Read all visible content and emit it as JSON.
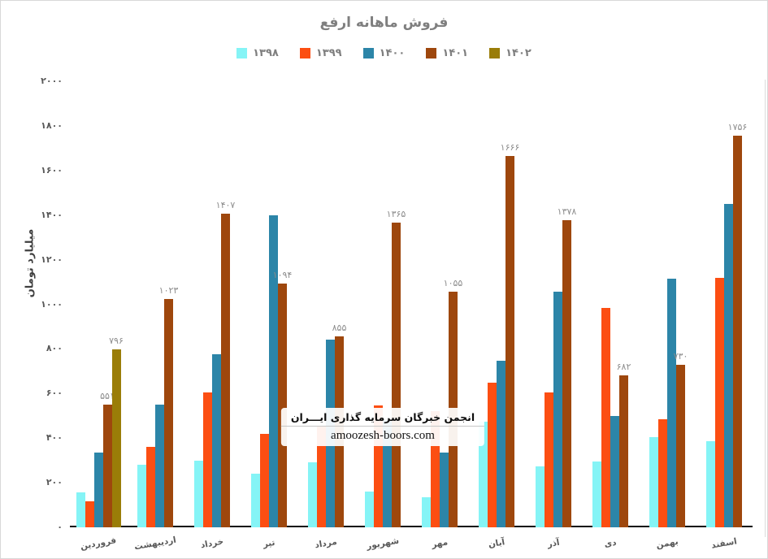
{
  "watermark": {
    "line1": "انجمن خبرگان سرمایه گذاری ایـــران",
    "line2": "amoozesh-boors.com"
  },
  "chart_data": {
    "type": "bar",
    "title": "فروش ماهانه ارفع",
    "ylabel": "میلیارد تومان",
    "xlabel": "",
    "ylim": [
      0,
      2000
    ],
    "grid": false,
    "legend_position": "top",
    "categories": [
      "فروردین",
      "اردیبهشت",
      "خرداد",
      "تیر",
      "مرداد",
      "شهریور",
      "مهر",
      "آبان",
      "آذر",
      "دی",
      "بهمن",
      "اسفند"
    ],
    "y_ticks": [
      {
        "label": "۰",
        "value": 0
      },
      {
        "label": "۲۰۰",
        "value": 200
      },
      {
        "label": "۴۰۰",
        "value": 400
      },
      {
        "label": "۶۰۰",
        "value": 600
      },
      {
        "label": "۸۰۰",
        "value": 800
      },
      {
        "label": "۱۰۰۰",
        "value": 1000
      },
      {
        "label": "۱۲۰۰",
        "value": 1200
      },
      {
        "label": "۱۴۰۰",
        "value": 1400
      },
      {
        "label": "۱۶۰۰",
        "value": 1600
      },
      {
        "label": "۱۸۰۰",
        "value": 1800
      },
      {
        "label": "۲۰۰۰",
        "value": 2000
      }
    ],
    "series": [
      {
        "name": "۱۳۹۸",
        "color": "#85F4F6",
        "values": [
          155,
          280,
          300,
          240,
          290,
          160,
          135,
          475,
          275,
          295,
          405,
          385
        ]
      },
      {
        "name": "۱۳۹۹",
        "color": "#FC4E12",
        "values": [
          115,
          360,
          605,
          420,
          450,
          545,
          520,
          650,
          605,
          985,
          485,
          1120
        ]
      },
      {
        "name": "۱۴۰۰",
        "color": "#2C85A8",
        "values": [
          335,
          550,
          775,
          1400,
          840,
          480,
          335,
          745,
          1055,
          500,
          1115,
          1450
        ]
      },
      {
        "name": "۱۴۰۱",
        "color": "#9E470D",
        "values": [
          551,
          1023,
          1407,
          1094,
          855,
          1365,
          1055,
          1666,
          1378,
          682,
          730,
          1756
        ],
        "data_labels": [
          "۵۵۱",
          "۱۰۲۳",
          "۱۴۰۷",
          "۱۰۹۴",
          "۸۵۵",
          "۱۳۶۵",
          "۱۰۵۵",
          "۱۶۶۶",
          "۱۳۷۸",
          "۶۸۲",
          "۷۳۰",
          "۱۷۵۶"
        ]
      },
      {
        "name": "۱۴۰۲",
        "color": "#9A7D08",
        "values": [
          796,
          null,
          null,
          null,
          null,
          null,
          null,
          null,
          null,
          null,
          null,
          null
        ],
        "data_labels": [
          "۷۹۶",
          null,
          null,
          null,
          null,
          null,
          null,
          null,
          null,
          null,
          null,
          null
        ]
      }
    ]
  }
}
